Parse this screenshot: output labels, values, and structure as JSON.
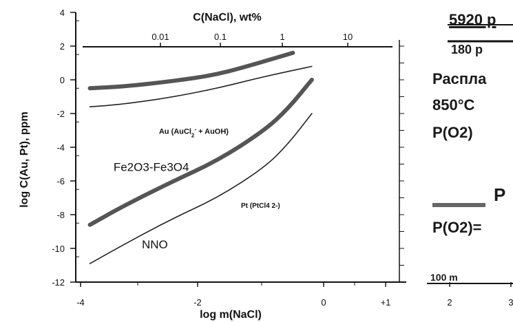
{
  "chart_data": {
    "type": "line",
    "title": "",
    "xlabel": "log m(NaCl)",
    "ylabel": "log C(Au, Pt), ppm",
    "x_top_label": "C(NaCl), wt%",
    "xlim": [
      -4,
      3
    ],
    "ylim": [
      -12,
      4
    ],
    "x_ticks": [
      "-4",
      "-2",
      "0",
      "+1",
      "2",
      "3"
    ],
    "y_ticks": [
      "4",
      "2",
      "0",
      "-2",
      "-4",
      "-6",
      "-8",
      "-10",
      "-12"
    ],
    "top_ticks": [
      "0.01",
      "0.1",
      "1",
      "10"
    ],
    "series": [
      {
        "name": "Au (AuCl2- + AuOH)",
        "style": "thick",
        "color": "#555555",
        "x": [
          -3.7,
          -3.0,
          -2.0,
          -1.0,
          0.0,
          0.6
        ],
        "y": [
          -0.5,
          -0.4,
          -0.1,
          0.3,
          1.1,
          1.6
        ]
      },
      {
        "name": "",
        "style": "thin",
        "color": "#222222",
        "x": [
          -3.7,
          -3.0,
          -2.0,
          -1.0,
          0.0,
          1.0
        ],
        "y": [
          -1.6,
          -1.45,
          -1.05,
          -0.5,
          0.2,
          0.8
        ]
      },
      {
        "name": "Pt (PtCl4 2-)",
        "style": "thick",
        "color": "#555555",
        "x": [
          -3.7,
          -3.0,
          -2.0,
          -1.0,
          0.0,
          0.5,
          1.0
        ],
        "y": [
          -8.6,
          -7.5,
          -6.1,
          -4.8,
          -3.0,
          -1.7,
          0.0
        ]
      },
      {
        "name": "",
        "style": "thin",
        "color": "#222222",
        "x": [
          -3.7,
          -3.0,
          -2.0,
          -1.0,
          0.0,
          0.5,
          1.0
        ],
        "y": [
          -10.9,
          -9.8,
          -8.3,
          -7.0,
          -5.2,
          -3.8,
          -2.0
        ]
      }
    ],
    "annotations": [
      {
        "text": "Au (AuCl2- + AuOH)",
        "base": "Au (AuCl",
        "sub1": "2",
        "sup": "-",
        "rest": " + AuOH)",
        "x": -1.5,
        "y": -3.2
      },
      {
        "text": "Fe2O3-Fe3O4",
        "x": -3.2,
        "y": -5.4
      },
      {
        "text": "Pt (PtCl4 2-)",
        "x": -0.5,
        "y": -7.6
      },
      {
        "text": "NNO",
        "x": -2.6,
        "y": -10.0
      }
    ],
    "legend_right": {
      "top_text": "5920 p",
      "second_text": "180 p",
      "line1": "Распла",
      "line2": "850°C",
      "line3": "P(O2)",
      "line4": "P",
      "line5": "P(O2)=",
      "scale_text": "100 m"
    },
    "grid": false
  }
}
